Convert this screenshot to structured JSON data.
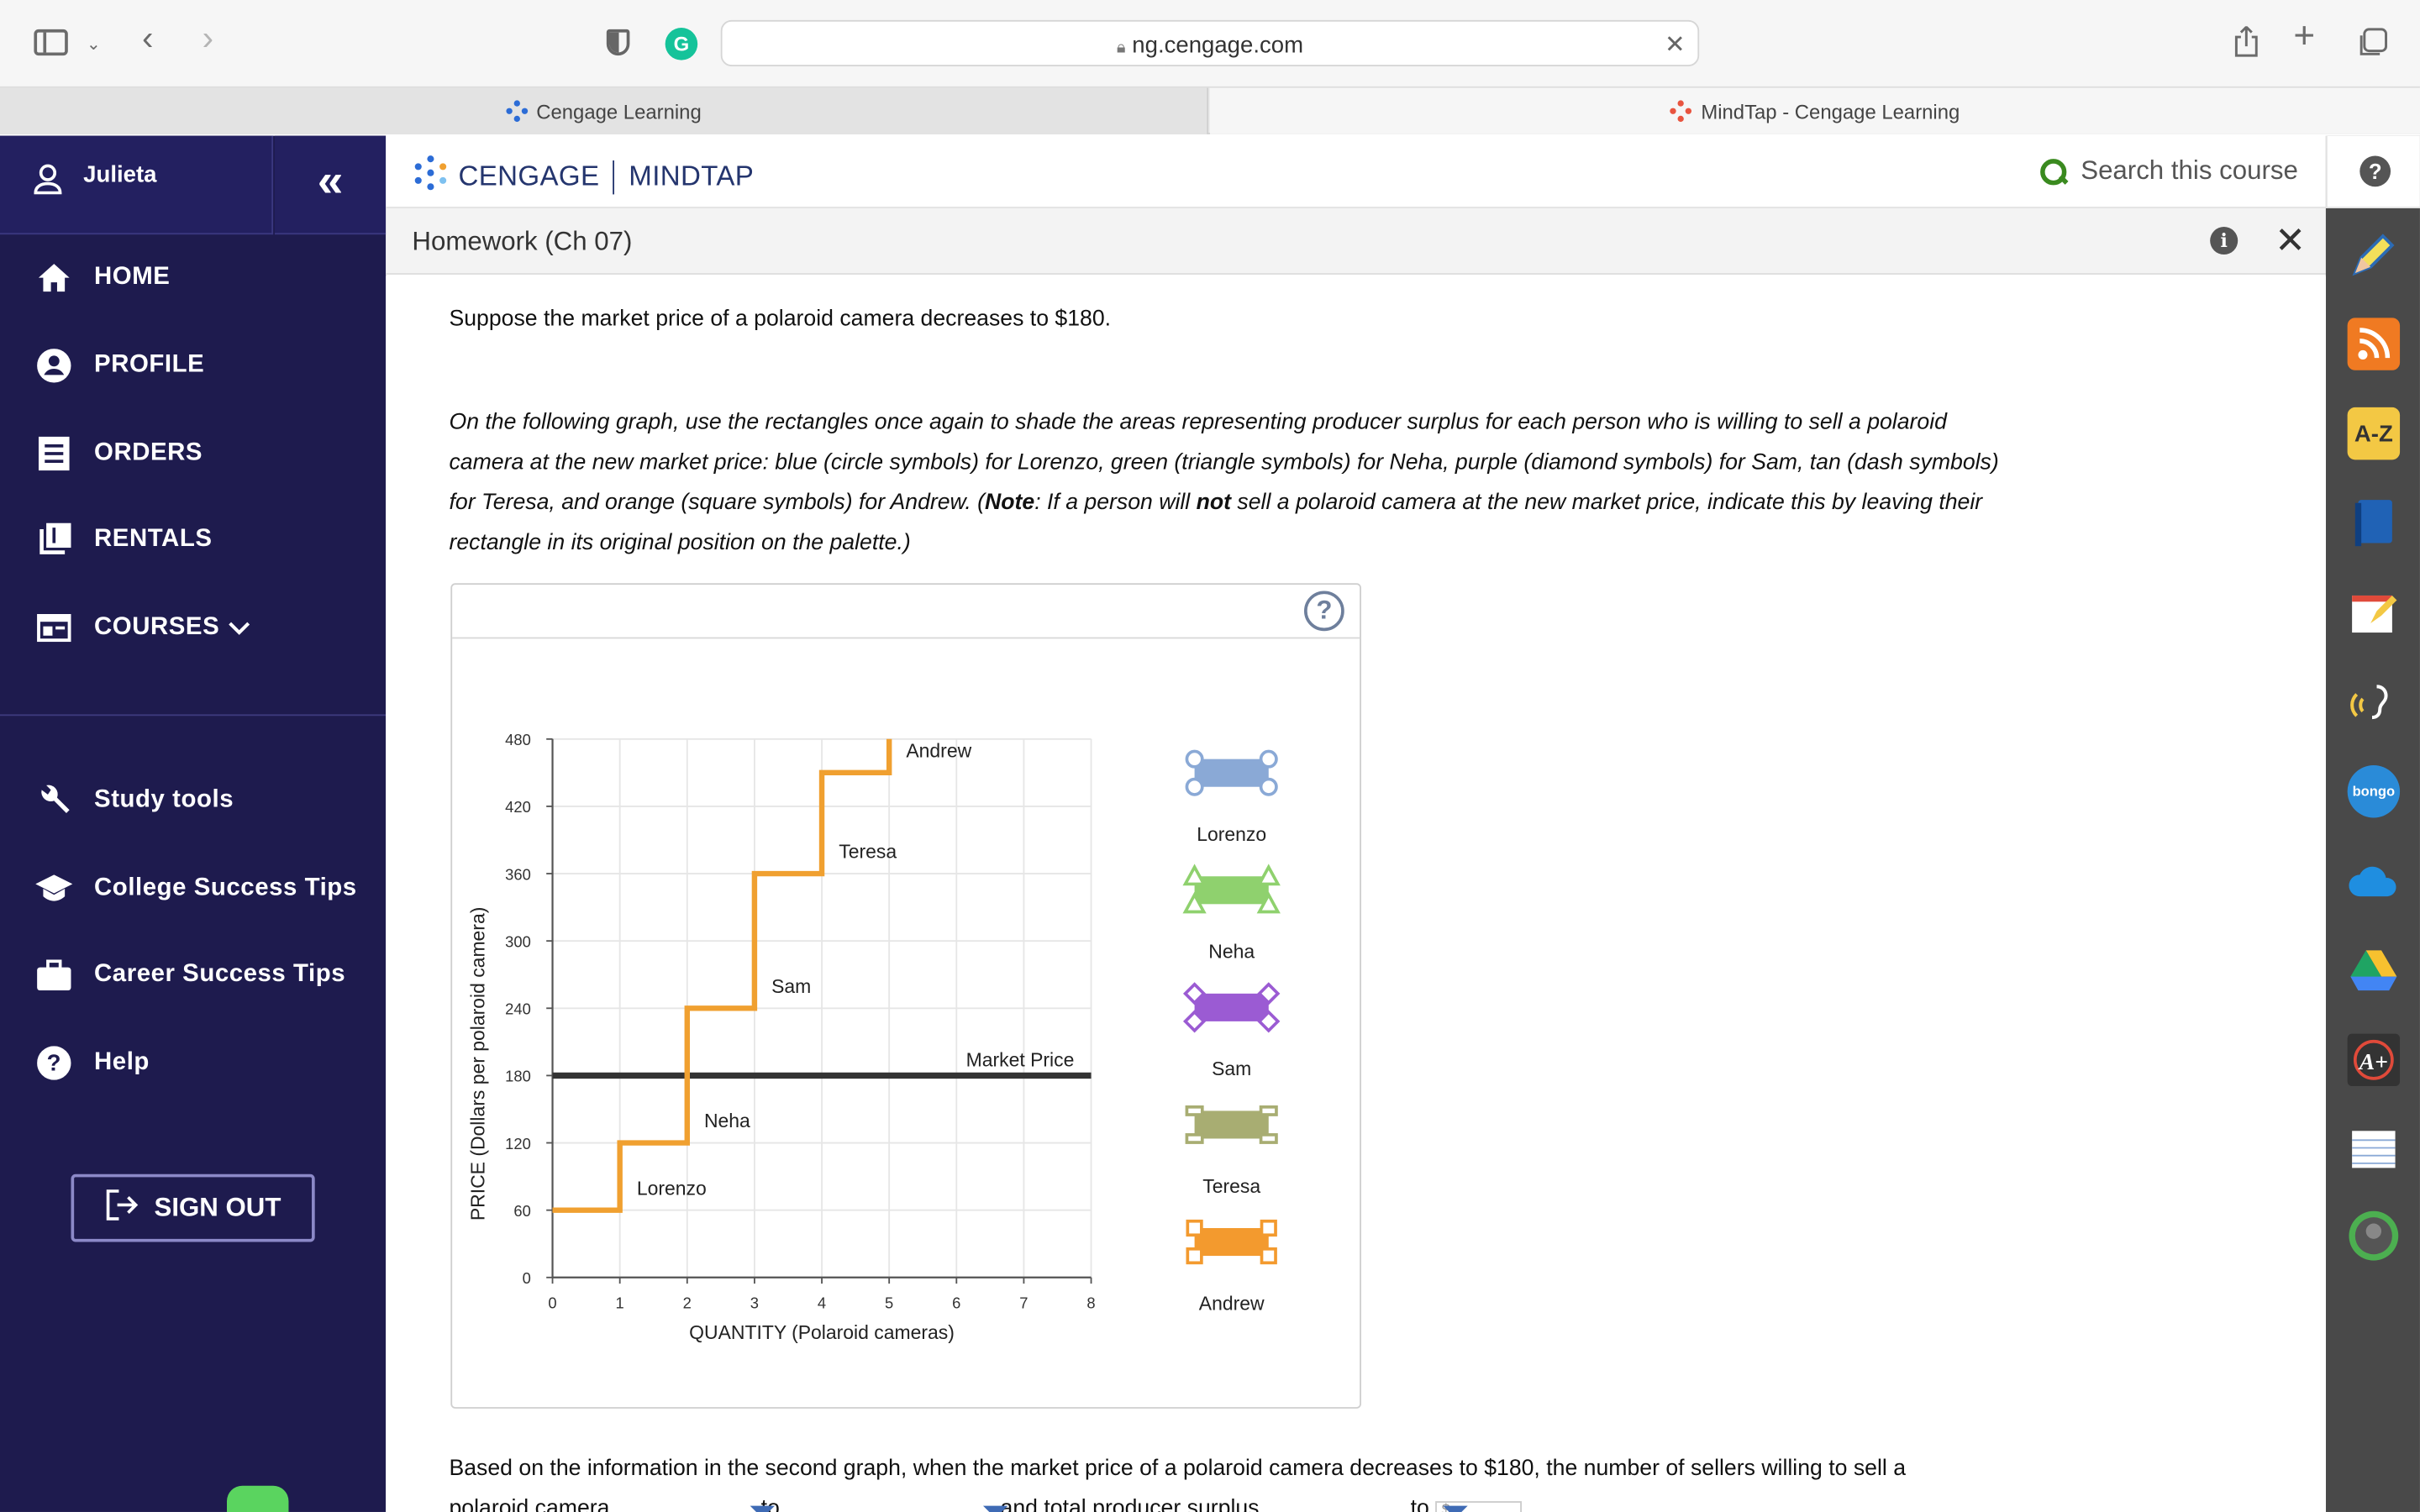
{
  "browser": {
    "url": "ng.cengage.com",
    "tabs": [
      {
        "label": "Cengage Learning"
      },
      {
        "label": "MindTap - Cengage Learning"
      }
    ]
  },
  "sidebar": {
    "user": "Julieta",
    "collapse_label": "«",
    "items": [
      {
        "label": "HOME",
        "icon": "home-icon"
      },
      {
        "label": "PROFILE",
        "icon": "profile-icon"
      },
      {
        "label": "ORDERS",
        "icon": "orders-icon"
      },
      {
        "label": "RENTALS",
        "icon": "rentals-icon"
      },
      {
        "label": "COURSES",
        "icon": "courses-icon"
      }
    ],
    "secondary": [
      {
        "label": "Study tools",
        "icon": "wrench-icon"
      },
      {
        "label": "College Success Tips",
        "icon": "graduation-cap-icon"
      },
      {
        "label": "Career Success Tips",
        "icon": "briefcase-icon"
      },
      {
        "label": "Help",
        "icon": "help-icon"
      }
    ],
    "sign_out": "SIGN OUT",
    "colors": {
      "background": "#1e1b4e"
    }
  },
  "header": {
    "brand": "CENGAGE",
    "product": "MINDTAP",
    "search_placeholder": "Search this course"
  },
  "title_bar": {
    "title": "Homework (Ch 07)"
  },
  "content": {
    "intro": "Suppose the market price of a polaroid camera decreases to $180.",
    "instructions_parts": [
      "On the following graph, use the rectangles once again to shade the areas representing producer surplus for each person who is willing to sell a polaroid camera at the new market price: blue (circle symbols) for Lorenzo, green (triangle symbols) for Neha, purple (diamond symbols) for Sam, tan (dash symbols) for Teresa, and orange (square symbols) for Andrew. (",
      "Note",
      ": If a person will ",
      "not",
      " sell a polaroid camera at the new market price, indicate this by leaving their rectangle in its original position on the palette.)"
    ],
    "question_line1": "Based on the information in the second graph, when the market price of a polaroid camera decreases to $180, the number of sellers willing to sell a",
    "question_line2_parts": [
      "polaroid camera",
      "to",
      "and total producer surplus",
      "to",
      "$"
    ]
  },
  "chart_data": {
    "type": "line",
    "xlabel": "QUANTITY (Polaroid cameras)",
    "ylabel": "PRICE (Dollars per polaroid camera)",
    "xlim": [
      0,
      8
    ],
    "ylim": [
      0,
      480
    ],
    "x_ticks": [
      "0",
      "1",
      "2",
      "3",
      "4",
      "5",
      "6",
      "7",
      "8"
    ],
    "y_ticks": [
      "0",
      "60",
      "120",
      "180",
      "240",
      "300",
      "360",
      "420",
      "480"
    ],
    "grid": true,
    "supply_steps": [
      {
        "name": "Lorenzo",
        "price": 60,
        "quantity_from": 0,
        "quantity_to": 1
      },
      {
        "name": "Neha",
        "price": 120,
        "quantity_from": 1,
        "quantity_to": 2
      },
      {
        "name": "Sam",
        "price": 240,
        "quantity_from": 2,
        "quantity_to": 3
      },
      {
        "name": "Teresa",
        "price": 360,
        "quantity_from": 3,
        "quantity_to": 4
      },
      {
        "name": "Andrew",
        "price": 450,
        "quantity_from": 4,
        "quantity_to": 5
      }
    ],
    "market_price": {
      "label": "Market Price",
      "value": 180
    },
    "supply_color": "#f0a030",
    "market_color": "#333333",
    "palette": [
      {
        "label": "Lorenzo",
        "color": "#8aa9d6",
        "symbol": "circle"
      },
      {
        "label": "Neha",
        "color": "#8fd16e",
        "symbol": "triangle"
      },
      {
        "label": "Sam",
        "color": "#9b5bd3",
        "symbol": "diamond"
      },
      {
        "label": "Teresa",
        "color": "#a8ad72",
        "symbol": "dash"
      },
      {
        "label": "Andrew",
        "color": "#f39a2e",
        "symbol": "square"
      }
    ]
  }
}
